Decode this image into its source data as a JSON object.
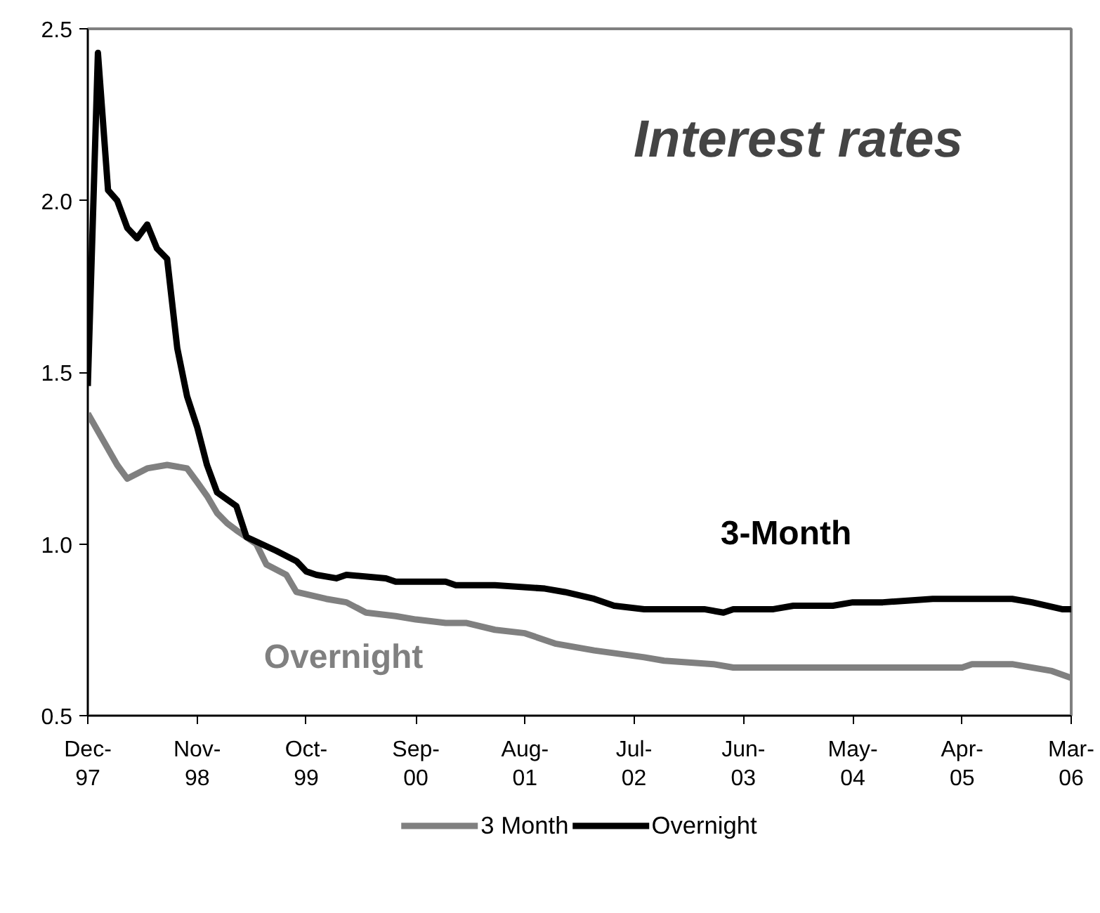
{
  "chart_data": {
    "type": "line",
    "title": "Interest rates",
    "x": [
      "1997-12",
      "1998-03",
      "1998-04",
      "1998-06",
      "1998-08",
      "1998-10",
      "1998-11",
      "1998-12",
      "1999-01",
      "1999-02",
      "1999-03",
      "1999-05",
      "1999-06",
      "1999-08",
      "1999-09",
      "1999-12",
      "2000-02",
      "2000-04",
      "2000-07",
      "2000-09",
      "2000-12",
      "2001-02",
      "2001-05",
      "2001-08",
      "2001-11",
      "2002-03",
      "2002-08",
      "2002-10",
      "2003-03",
      "2003-05",
      "2003-12",
      "2005-04",
      "2005-05",
      "2005-09",
      "2006-01",
      "2006-03"
    ],
    "series": [
      {
        "name": "3 Month",
        "color": "#808080",
        "values": [
          1.38,
          1.23,
          1.19,
          1.22,
          1.23,
          1.22,
          1.18,
          1.14,
          1.09,
          1.06,
          1.04,
          1.0,
          0.94,
          0.91,
          0.86,
          0.84,
          0.83,
          0.8,
          0.79,
          0.78,
          0.77,
          0.77,
          0.75,
          0.74,
          0.71,
          0.69,
          0.67,
          0.66,
          0.65,
          0.64,
          0.64,
          0.64,
          0.65,
          0.65,
          0.63,
          0.61
        ]
      },
      {
        "name": "Overnight",
        "color": "#000000",
        "x": [
          "1997-12",
          "1998-01",
          "1998-02",
          "1998-03",
          "1998-04",
          "1998-05",
          "1998-06",
          "1998-07",
          "1998-08",
          "1998-09",
          "1998-10",
          "1998-11",
          "1998-12",
          "1999-01",
          "1999-03",
          "1999-04",
          "1999-07",
          "1999-09",
          "1999-10",
          "1999-11",
          "2000-01",
          "2000-02",
          "2000-06",
          "2000-07",
          "2000-12",
          "2001-01",
          "2001-05",
          "2001-10",
          "2001-12",
          "2002-03",
          "2002-05",
          "2002-08",
          "2003-02",
          "2003-04",
          "2003-05",
          "2003-09",
          "2003-11",
          "2004-03",
          "2004-05",
          "2004-08",
          "2005-01",
          "2005-09",
          "2005-11",
          "2006-02",
          "2006-03"
        ],
        "values": [
          1.46,
          2.43,
          2.03,
          2.0,
          1.92,
          1.89,
          1.93,
          1.86,
          1.83,
          1.57,
          1.43,
          1.34,
          1.23,
          1.15,
          1.11,
          1.02,
          0.98,
          0.95,
          0.92,
          0.91,
          0.9,
          0.91,
          0.9,
          0.89,
          0.89,
          0.88,
          0.88,
          0.87,
          0.86,
          0.84,
          0.82,
          0.81,
          0.81,
          0.8,
          0.81,
          0.81,
          0.82,
          0.82,
          0.83,
          0.83,
          0.84,
          0.84,
          0.83,
          0.81,
          0.81
        ]
      }
    ],
    "xlim": [
      "1997-12",
      "2006-03"
    ],
    "xticks": [
      {
        "value": "1997-12",
        "label": "Dec-\n97"
      },
      {
        "value": "1998-11",
        "label": "Nov-\n98"
      },
      {
        "value": "1999-10",
        "label": "Oct-\n99"
      },
      {
        "value": "2000-09",
        "label": "Sep-\n00"
      },
      {
        "value": "2001-08",
        "label": "Aug-\n01"
      },
      {
        "value": "2002-07",
        "label": "Jul-\n02"
      },
      {
        "value": "2003-06",
        "label": "Jun-\n03"
      },
      {
        "value": "2004-05",
        "label": "May-\n04"
      },
      {
        "value": "2005-04",
        "label": "Apr-\n05"
      },
      {
        "value": "2006-03",
        "label": "Mar-\n06"
      }
    ],
    "ylim": [
      0.5,
      2.5
    ],
    "yticks": [
      0.5,
      {
        "value": 1.0,
        "label": "1.0"
      },
      1.5,
      {
        "value": 2.0,
        "label": "2.0"
      },
      2.5
    ],
    "annotations": [
      "3-Month",
      "Overnight"
    ],
    "legend": "bottom",
    "grid": false,
    "line_style": "solid",
    "marker": "none"
  }
}
